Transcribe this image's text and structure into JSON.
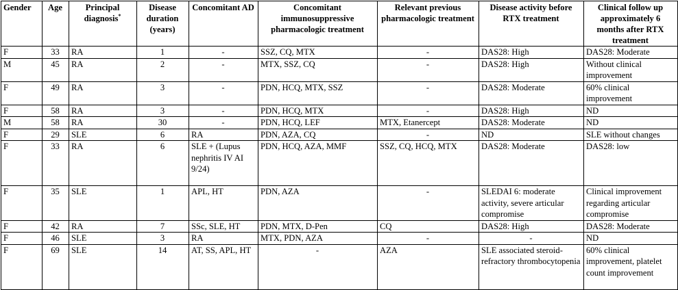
{
  "headers": {
    "gender": "Gender",
    "age": "Age",
    "diagnosis": "Principal diagnosis",
    "diagnosis_mark": "*",
    "duration": "Disease duration (years)",
    "ad": "Concomitant AD",
    "treatment": "Concomitant immunosuppressive pharmacologic treatment",
    "previous": "Relevant previous pharmacologic treatment",
    "before": "Disease activity before RTX treatment",
    "followup": "Clinical follow up approximately 6 months after RTX treatment"
  },
  "rows": [
    {
      "gender": "F",
      "age": "33",
      "diagnosis": "RA",
      "duration": "1",
      "ad": "-",
      "treatment": "SSZ, CQ, MTX",
      "previous": "-",
      "before": "DAS28: High",
      "followup": "DAS28: Moderate"
    },
    {
      "gender": "M",
      "age": "45",
      "diagnosis": "RA",
      "duration": "2",
      "ad": "-",
      "treatment": "MTX, SSZ, CQ",
      "previous": "-",
      "before": "DAS28: High",
      "followup": "Without clinical improvement"
    },
    {
      "gender": "F",
      "age": "49",
      "diagnosis": "RA",
      "duration": "3",
      "ad": "-",
      "treatment": "PDN, HCQ, MTX, SSZ",
      "previous": "-",
      "before": "DAS28: Moderate",
      "followup": "60% clinical improvement"
    },
    {
      "gender": "F",
      "age": "58",
      "diagnosis": "RA",
      "duration": "3",
      "ad": "-",
      "treatment": "PDN, HCQ, MTX",
      "previous": "-",
      "before": "DAS28: High",
      "followup": "ND"
    },
    {
      "gender": "M",
      "age": "58",
      "diagnosis": "RA",
      "duration": "30",
      "ad": "-",
      "treatment": "PDN, HCQ, LEF",
      "previous": "MTX, Etanercept",
      "before": "DAS28: Moderate",
      "followup": "ND"
    },
    {
      "gender": "F",
      "age": "29",
      "diagnosis": "SLE",
      "duration": "6",
      "ad": "RA",
      "treatment": "PDN, AZA, CQ",
      "previous": "-",
      "before": "ND",
      "followup": "SLE without changes"
    },
    {
      "gender": "F",
      "age": "33",
      "diagnosis": "RA",
      "duration": "6",
      "ad": "SLE + (Lupus nephritis IV AI 9/24)",
      "treatment": "PDN, HCQ, AZA, MMF",
      "previous": "SSZ, CQ, HCQ, MTX",
      "before": "DAS28: Moderate",
      "followup": "DAS28: low"
    },
    {
      "gender": "F",
      "age": "35",
      "diagnosis": "SLE",
      "duration": "1",
      "ad": "APL, HT",
      "treatment": "PDN, AZA",
      "previous": "-",
      "before": "SLEDAI 6: moderate activity, severe articular compromise",
      "followup": "Clinical improvement regarding articular compromise"
    },
    {
      "gender": "F",
      "age": "42",
      "diagnosis": "RA",
      "duration": "7",
      "ad": "SSc, SLE, HT",
      "treatment": "PDN, MTX, D-Pen",
      "previous": "CQ",
      "before": "DAS28: High",
      "followup": "DAS28: Moderate"
    },
    {
      "gender": "F",
      "age": "46",
      "diagnosis": "SLE",
      "duration": "3",
      "ad": "RA",
      "treatment": "MTX, PDN, AZA",
      "previous": "-",
      "before": "-",
      "followup": "ND"
    },
    {
      "gender": "F",
      "age": "69",
      "diagnosis": "SLE",
      "duration": "14",
      "ad": "AT, SS, APL, HT",
      "treatment": "-",
      "previous": "AZA",
      "before": "SLE associated steroid-refractory thrombocytopenia",
      "followup": "60% clinical improvement, platelet count improvement"
    }
  ]
}
